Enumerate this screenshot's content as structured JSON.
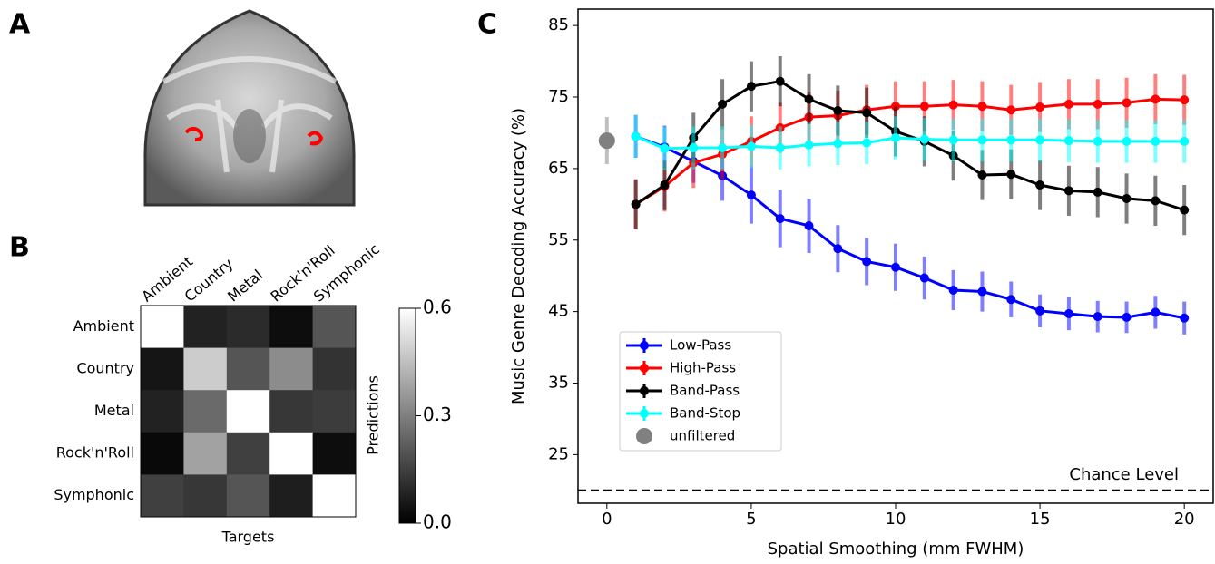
{
  "panel_labels": [
    "A",
    "B",
    "C"
  ],
  "chart_data": [
    {
      "type": "heatmap",
      "x_categories": [
        "Ambient",
        "Country",
        "Metal",
        "Rock'n'Roll",
        "Symphonic"
      ],
      "y_categories": [
        "Ambient",
        "Country",
        "Metal",
        "Rock'n'Roll",
        "Symphonic"
      ],
      "values": [
        [
          0.6,
          0.08,
          0.1,
          0.03,
          0.2
        ],
        [
          0.05,
          0.48,
          0.2,
          0.33,
          0.12
        ],
        [
          0.08,
          0.25,
          0.6,
          0.13,
          0.14
        ],
        [
          0.02,
          0.38,
          0.15,
          0.6,
          0.03
        ],
        [
          0.15,
          0.13,
          0.2,
          0.07,
          0.6
        ]
      ],
      "xlabel": "Targets",
      "colorbar_label": "Predictions",
      "clim": [
        0,
        0.6
      ],
      "colorbar_ticks": [
        {
          "value": 0,
          "label": "0.0"
        },
        0.3,
        0.6
      ],
      "colormap": "gray"
    },
    {
      "type": "line",
      "xlabel": "Spatial Smoothing (mm FWHM)",
      "ylabel": "Music Genre Decoding Accuracy (%)",
      "x": [
        1,
        2,
        3,
        4,
        5,
        6,
        7,
        8,
        9,
        10,
        11,
        12,
        13,
        14,
        15,
        16,
        17,
        18,
        19,
        20
      ],
      "series": [
        {
          "name": "Low-Pass",
          "color": "#0000ff",
          "values": [
            69.5,
            68,
            66,
            64,
            61.3,
            58,
            57,
            53.8,
            52,
            51.2,
            49.7,
            48,
            47.8,
            46.7,
            45.1,
            44.7,
            44.3,
            44.2,
            44.9,
            44.1
          ],
          "errors": [
            3,
            3,
            3,
            3.5,
            4,
            4,
            3.8,
            3.3,
            3.3,
            3.3,
            3,
            2.8,
            2.8,
            2.5,
            2.3,
            2.3,
            2.2,
            2.2,
            2.3,
            2.3
          ]
        },
        {
          "name": "High-Pass",
          "color": "#ff0000",
          "values": [
            60,
            62.5,
            65.8,
            67,
            68.8,
            70.7,
            72.2,
            72.4,
            73.2,
            73.7,
            73.7,
            73.9,
            73.7,
            73.2,
            73.6,
            74,
            74,
            74.2,
            74.7,
            74.6
          ],
          "errors": [
            3.5,
            3.5,
            3.5,
            3.5,
            3.5,
            3.5,
            3.5,
            3.5,
            3.5,
            3.5,
            3.5,
            3.5,
            3.5,
            3.5,
            3.5,
            3.5,
            3.5,
            3.5,
            3.5,
            3.5
          ]
        },
        {
          "name": "Band-Pass",
          "color": "#000000",
          "values": [
            60,
            62.7,
            69.3,
            74,
            76.5,
            77.2,
            74.7,
            73.1,
            72.8,
            70.2,
            68.8,
            66.8,
            64.1,
            64.2,
            62.7,
            61.9,
            61.7,
            60.8,
            60.5,
            59.2
          ],
          "errors": [
            3.5,
            3.5,
            3.5,
            3.5,
            3.5,
            3.5,
            3.5,
            3.5,
            3.5,
            3.5,
            3.5,
            3.5,
            3.5,
            3.5,
            3.5,
            3.5,
            3.5,
            3.5,
            3.5,
            3.5
          ]
        },
        {
          "name": "Band-Stop",
          "color": "#00ffff",
          "values": [
            69.5,
            67.8,
            67.9,
            67.9,
            68.1,
            67.9,
            68.3,
            68.5,
            68.6,
            69.3,
            69.1,
            69,
            69,
            69,
            69,
            68.9,
            68.8,
            68.8,
            68.8,
            68.8
          ],
          "errors": [
            3,
            3,
            3,
            3,
            3,
            3,
            3,
            3,
            3,
            3,
            3,
            3,
            3,
            3,
            3,
            3,
            3,
            3,
            3,
            3
          ]
        },
        {
          "name": "unfiltered",
          "color": "#808080",
          "marker": "circle",
          "x": [
            0
          ],
          "values": [
            68.9
          ],
          "errors": [
            3.3
          ]
        }
      ],
      "xlim": [
        -1,
        21
      ],
      "ylim": [
        18.2,
        87.3
      ],
      "xticks": [
        0,
        5,
        10,
        15,
        20
      ],
      "yticks": [
        25,
        35,
        45,
        55,
        65,
        75,
        85
      ],
      "hlines": [
        {
          "y": 20,
          "label": "Chance Level"
        }
      ],
      "legend": "lower left"
    }
  ]
}
